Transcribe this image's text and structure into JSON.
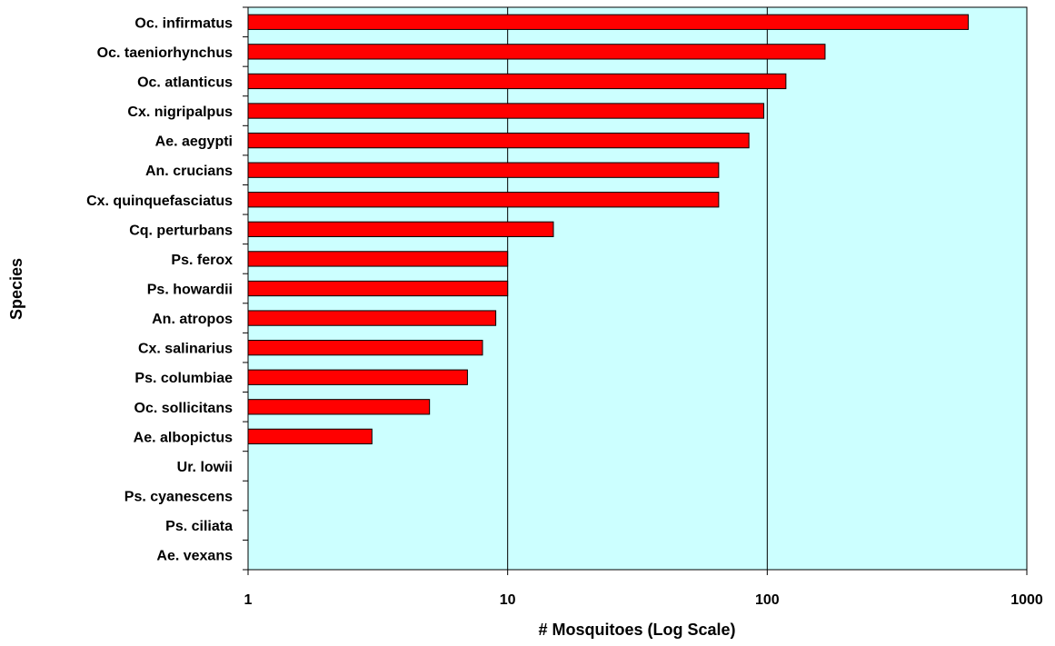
{
  "chart_data": {
    "type": "bar",
    "orientation": "horizontal",
    "xlabel": "# Mosquitoes (Log Scale)",
    "ylabel": "Species",
    "x_scale": "log",
    "xlim": [
      1,
      1000
    ],
    "x_ticks": [
      "1",
      "10",
      "100",
      "1000"
    ],
    "grid": "vertical major gridlines",
    "legend": "none",
    "categories": [
      "Oc. infirmatus",
      "Oc. taeniorhynchus",
      "Oc. atlanticus",
      "Cx. nigripalpus",
      "Ae. aegypti",
      "An. crucians",
      "Cx. quinquefasciatus",
      "Cq. perturbans",
      "Ps. ferox",
      "Ps. howardii",
      "An. atropos",
      "Cx. salinarius",
      "Ps. columbiae",
      "Oc. sollicitans",
      "Ae. albopictus",
      "Ur. lowii",
      "Ps. cyanescens",
      "Ps. ciliata",
      "Ae. vexans"
    ],
    "values": [
      595,
      167,
      118,
      97,
      85,
      65,
      65,
      15,
      10,
      10,
      9,
      8,
      7,
      5,
      3,
      1,
      1,
      1,
      1
    ],
    "colors": {
      "bar_fill": "#ff0000",
      "bar_stroke": "#000000",
      "plot_background": "#ccffff",
      "gridline": "#000000"
    }
  }
}
